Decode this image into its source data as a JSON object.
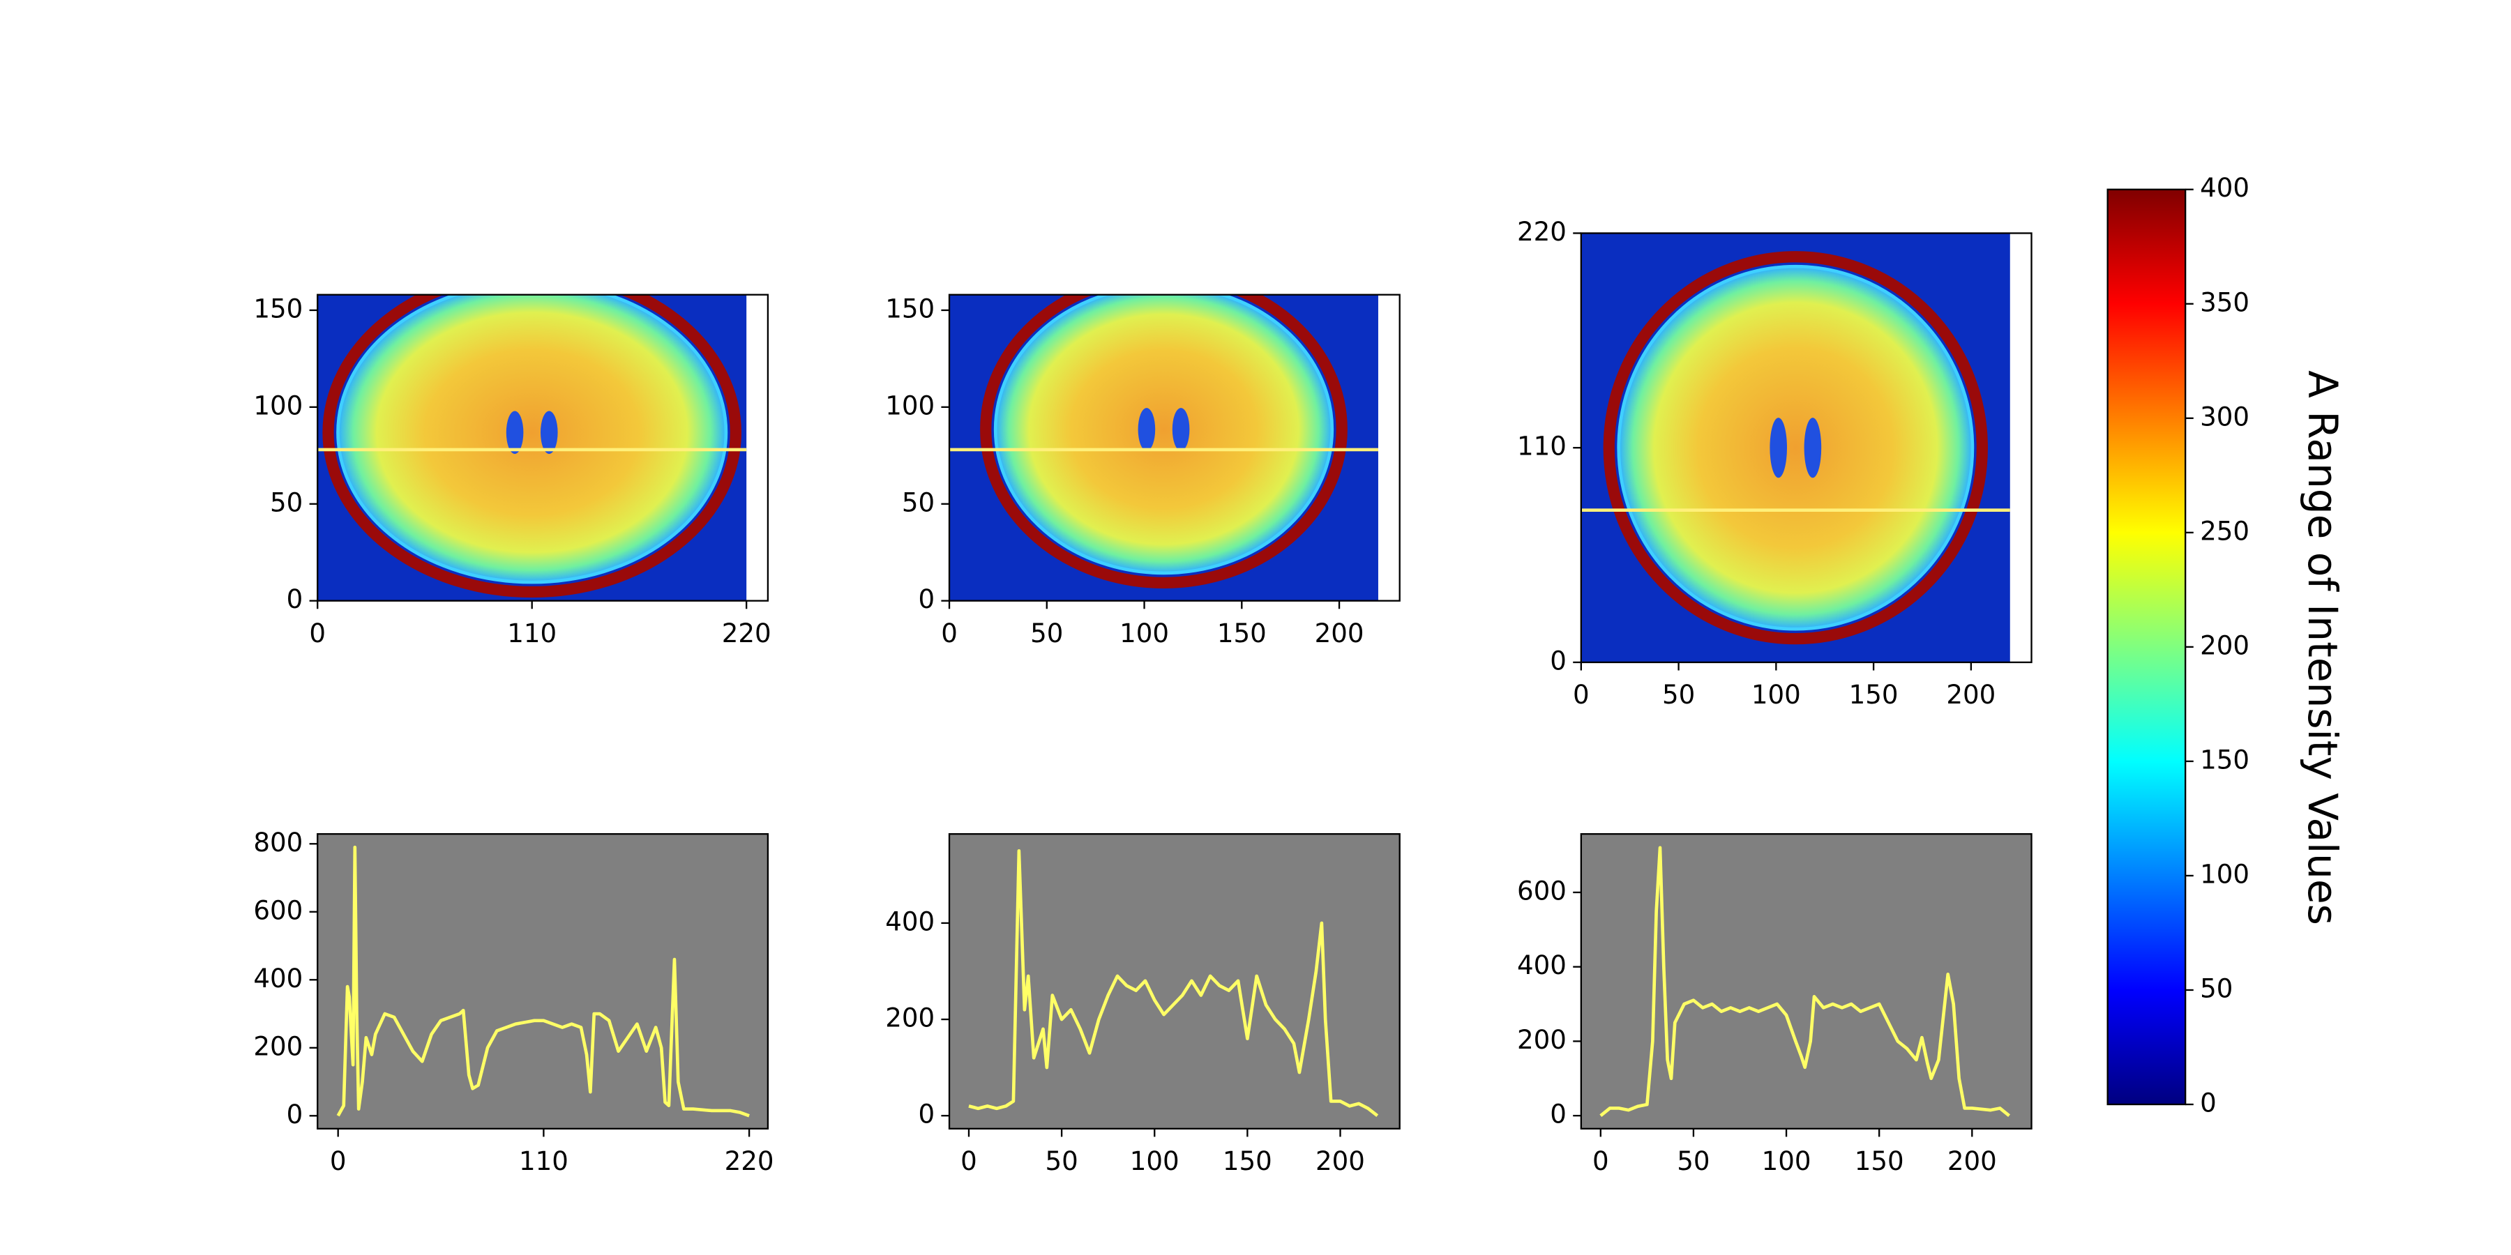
{
  "chart_data": [
    {
      "type": "image",
      "cmap": "jet",
      "extent": [
        0,
        220,
        0,
        158
      ],
      "xlim": [
        0,
        231
      ],
      "ylim": [
        0,
        158
      ],
      "xticks": [
        0,
        110,
        220
      ],
      "yticks": [
        0,
        50,
        100,
        150
      ],
      "hline": 78,
      "hline_color": "#fff07a"
    },
    {
      "type": "image",
      "cmap": "jet",
      "extent": [
        0,
        220,
        0,
        158
      ],
      "xlim": [
        0,
        231
      ],
      "ylim": [
        0,
        158
      ],
      "xticks": [
        0,
        50,
        100,
        150,
        200
      ],
      "yticks": [
        0,
        50,
        100,
        150
      ],
      "hline": 78,
      "hline_color": "#fff07a"
    },
    {
      "type": "image",
      "cmap": "jet",
      "extent": [
        0,
        220,
        0,
        220
      ],
      "xlim": [
        0,
        231
      ],
      "ylim": [
        0,
        220
      ],
      "xticks": [
        0,
        50,
        100,
        150,
        200
      ],
      "yticks": [
        0,
        110,
        220
      ],
      "hline": 78,
      "hline_color": "#fff07a"
    },
    {
      "type": "line",
      "background": "#808080",
      "xlim": [
        -11,
        230
      ],
      "ylim": [
        -38,
        829
      ],
      "xticks": [
        0,
        110,
        220
      ],
      "yticks": [
        0,
        200,
        400,
        600,
        800
      ],
      "series": [
        {
          "color": "#ffff66",
          "x": [
            0,
            3,
            5,
            6,
            8,
            9,
            10,
            11,
            13,
            15,
            18,
            20,
            25,
            30,
            35,
            40,
            45,
            50,
            55,
            60,
            65,
            67,
            70,
            72,
            75,
            80,
            85,
            90,
            95,
            100,
            105,
            110,
            115,
            120,
            125,
            130,
            133,
            135,
            137,
            140,
            145,
            150,
            155,
            160,
            165,
            170,
            173,
            175,
            177,
            180,
            182,
            185,
            190,
            200,
            210,
            215,
            220
          ],
          "values": [
            0,
            30,
            380,
            350,
            150,
            790,
            300,
            20,
            100,
            230,
            180,
            240,
            300,
            290,
            240,
            190,
            160,
            240,
            280,
            290,
            300,
            310,
            120,
            80,
            90,
            200,
            250,
            260,
            270,
            275,
            280,
            280,
            270,
            260,
            270,
            260,
            180,
            70,
            300,
            300,
            280,
            190,
            230,
            270,
            190,
            260,
            200,
            40,
            30,
            460,
            100,
            20,
            20,
            15,
            15,
            10,
            0
          ]
        }
      ]
    },
    {
      "type": "line",
      "background": "#808080",
      "xlim": [
        -10.5,
        232
      ],
      "ylim": [
        -27,
        585
      ],
      "xticks": [
        0,
        50,
        100,
        150,
        200
      ],
      "yticks": [
        0,
        200,
        400
      ],
      "series": [
        {
          "color": "#ffff66",
          "x": [
            0,
            5,
            10,
            15,
            20,
            24,
            27,
            30,
            32,
            35,
            40,
            42,
            45,
            50,
            55,
            60,
            65,
            70,
            75,
            80,
            85,
            90,
            95,
            100,
            105,
            110,
            115,
            120,
            125,
            130,
            135,
            140,
            145,
            150,
            155,
            160,
            165,
            170,
            175,
            178,
            183,
            187,
            190,
            192,
            195,
            200,
            205,
            210,
            215,
            220
          ],
          "values": [
            20,
            15,
            20,
            15,
            20,
            30,
            550,
            220,
            290,
            120,
            180,
            100,
            250,
            200,
            220,
            180,
            130,
            200,
            250,
            290,
            270,
            260,
            280,
            240,
            210,
            230,
            250,
            280,
            250,
            290,
            270,
            260,
            280,
            160,
            290,
            230,
            200,
            180,
            150,
            90,
            200,
            300,
            400,
            200,
            30,
            30,
            20,
            25,
            15,
            0
          ]
        }
      ]
    },
    {
      "type": "line",
      "background": "#808080",
      "xlim": [
        -10.5,
        232
      ],
      "ylim": [
        -35,
        757
      ],
      "xticks": [
        0,
        50,
        100,
        150,
        200
      ],
      "yticks": [
        0,
        200,
        400,
        600
      ],
      "series": [
        {
          "color": "#ffff66",
          "x": [
            0,
            5,
            10,
            15,
            20,
            25,
            28,
            30,
            32,
            34,
            36,
            38,
            40,
            45,
            50,
            55,
            60,
            65,
            70,
            75,
            80,
            85,
            90,
            95,
            100,
            105,
            108,
            110,
            113,
            115,
            120,
            125,
            130,
            135,
            140,
            145,
            150,
            155,
            160,
            165,
            170,
            173,
            176,
            178,
            182,
            187,
            190,
            193,
            196,
            200,
            210,
            215,
            220
          ],
          "values": [
            0,
            20,
            20,
            15,
            25,
            30,
            200,
            550,
            720,
            400,
            150,
            100,
            250,
            300,
            310,
            290,
            300,
            280,
            290,
            280,
            290,
            280,
            290,
            300,
            270,
            200,
            160,
            130,
            200,
            320,
            290,
            300,
            290,
            300,
            280,
            290,
            300,
            250,
            200,
            180,
            150,
            210,
            140,
            100,
            150,
            380,
            300,
            100,
            20,
            20,
            15,
            20,
            0
          ]
        }
      ]
    },
    {
      "type": "colorbar",
      "cmap": "jet",
      "ylim": [
        0,
        400
      ],
      "yticks": [
        0,
        50,
        100,
        150,
        200,
        250,
        300,
        350,
        400
      ],
      "label": "A Range of Intensity Values"
    }
  ]
}
